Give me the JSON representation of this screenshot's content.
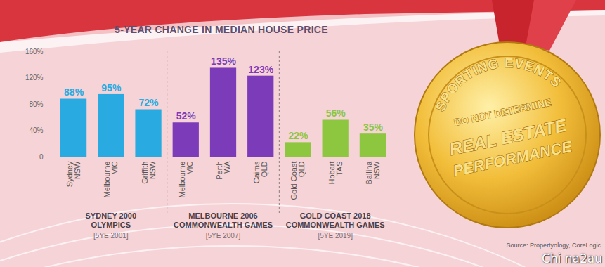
{
  "chart_data": {
    "type": "bar",
    "title": "5-YEAR CHANGE IN MEDIAN HOUSE PRICE",
    "groups": [
      {
        "label": "SYDNEY 2000 OLYMPICS",
        "period": "[5YE 2001]",
        "color": "#29abe2",
        "categories": [
          "Sydney NSW",
          "Melbourne VIC",
          "Griffith NSW"
        ],
        "values": [
          88,
          95,
          72
        ],
        "value_labels": [
          "88%",
          "95%",
          "72%"
        ]
      },
      {
        "label": "MELBOURNE 2006 COMMONWEALTH GAMES",
        "period": "[5YE 2007]",
        "color": "#7c3cba",
        "categories": [
          "Melbourne VIC",
          "Perth WA",
          "Cairns QLD"
        ],
        "values": [
          52,
          135,
          123
        ],
        "value_labels": [
          "52%",
          "135%",
          "123%"
        ]
      },
      {
        "label": "GOLD COAST 2018 COMMONWEALTH GAMES",
        "period": "[5YE 2019]",
        "color": "#8dc63f",
        "categories": [
          "Gold Coast QLD",
          "Hobart TAS",
          "Ballina NSW"
        ],
        "values": [
          22,
          56,
          35
        ],
        "value_labels": [
          "22%",
          "56%",
          "35%"
        ]
      }
    ],
    "ylim": [
      0,
      160
    ],
    "yticks": [
      0,
      {
        "value": 40,
        "label": "40%"
      },
      {
        "value": 80,
        "label": "80%"
      },
      {
        "value": 120,
        "label": "120%"
      },
      {
        "value": 160,
        "label": "160%"
      }
    ],
    "grid": false,
    "data_labels": true,
    "annotations": {
      "medal": [
        "SPORTING EVENTS",
        "DO NOT DETERMINE",
        "REAL ESTATE",
        "PERFORMANCE"
      ],
      "source": "Source: Propertyology, CoreLogic",
      "watermark": "Chi na2au"
    }
  }
}
